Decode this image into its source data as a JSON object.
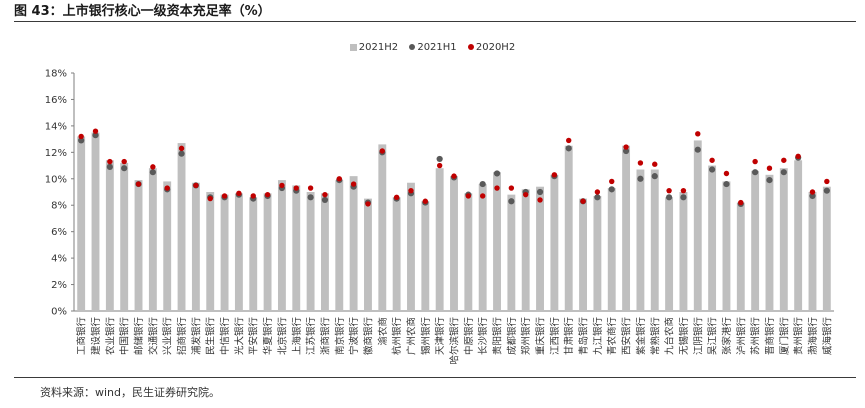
{
  "figure_title": "图 43：上市银行核心一级资本充足率（%）",
  "source_note": "资料来源：wind，民生证券研究院。",
  "colors": {
    "h2_2021": "#bfbfbf",
    "h1_2021": "#595959",
    "h2_2020": "#c00000"
  },
  "chart_data": {
    "type": "bar",
    "title": "",
    "xlabel": "",
    "ylabel": "",
    "ylim": [
      0,
      18
    ],
    "yticks": [
      "0%",
      "2%",
      "4%",
      "6%",
      "8%",
      "10%",
      "12%",
      "14%",
      "16%",
      "18%"
    ],
    "yticks_values": [
      0,
      2,
      4,
      6,
      8,
      10,
      12,
      14,
      16,
      18
    ],
    "grid": false,
    "legend_position": "top-center",
    "categories": [
      "工商银行",
      "建设银行",
      "农业银行",
      "中国银行",
      "邮储银行",
      "交通银行",
      "兴业银行",
      "招商银行",
      "浦发银行",
      "民生银行",
      "中信银行",
      "光大银行",
      "平安银行",
      "华夏银行",
      "北京银行",
      "上海银行",
      "江苏银行",
      "浙商银行",
      "南京银行",
      "宁波银行",
      "徽商银行",
      "渝农商",
      "杭州银行",
      "广州农商",
      "锡州银行",
      "天津银行",
      "哈尔滨银行",
      "中原银行",
      "长沙银行",
      "贵阳银行",
      "成都银行",
      "郑州银行",
      "重庆银行",
      "江西银行",
      "甘肃银行",
      "青岛银行",
      "九江银行",
      "青农商行",
      "西安银行",
      "紫金银行",
      "常熟银行",
      "九台农商",
      "无锡银行",
      "江阴银行",
      "吴江银行",
      "张家港行",
      "泸州银行",
      "苏州银行",
      "晋商银行",
      "厦门银行",
      "贵州银行",
      "渤海银行",
      "威海银行"
    ],
    "series": [
      {
        "name": "2021H2",
        "kind": "bar",
        "values": [
          13.2,
          13.5,
          11.4,
          11.2,
          9.9,
          10.8,
          9.8,
          12.7,
          9.7,
          9.0,
          8.8,
          8.9,
          8.6,
          8.9,
          9.9,
          9.5,
          9.0,
          8.9,
          9.9,
          10.2,
          8.5,
          12.6,
          8.6,
          9.7,
          8.3,
          10.8,
          10.2,
          8.9,
          9.6,
          10.5,
          8.8,
          9.2,
          9.4,
          10.3,
          12.5,
          8.5,
          8.7,
          9.3,
          12.5,
          10.7,
          10.7,
          8.6,
          9.0,
          12.9,
          11.0,
          9.8,
          8.2,
          10.6,
          10.3,
          10.8,
          11.4,
          9.0,
          9.4
        ]
      },
      {
        "name": "2021H1",
        "kind": "dot",
        "values": [
          12.9,
          13.3,
          10.9,
          10.8,
          9.6,
          10.5,
          9.2,
          11.9,
          9.5,
          8.6,
          8.6,
          8.8,
          8.5,
          8.7,
          9.3,
          9.1,
          8.6,
          8.4,
          9.9,
          9.4,
          8.2,
          12.0,
          8.5,
          8.9,
          8.2,
          11.5,
          10.1,
          8.8,
          9.6,
          10.4,
          8.3,
          9.0,
          9.0,
          10.2,
          12.3,
          8.3,
          8.6,
          9.2,
          12.1,
          10.0,
          10.2,
          8.6,
          8.6,
          12.2,
          10.7,
          9.6,
          8.1,
          10.5,
          9.9,
          10.5,
          11.6,
          8.7,
          9.1
        ]
      },
      {
        "name": "2020H2",
        "kind": "dot",
        "values": [
          13.2,
          13.6,
          11.3,
          11.3,
          9.6,
          10.9,
          9.3,
          12.3,
          9.5,
          8.5,
          8.7,
          8.9,
          8.7,
          8.8,
          9.5,
          9.3,
          9.3,
          8.8,
          10.0,
          9.6,
          8.1,
          12.1,
          8.6,
          9.1,
          8.3,
          11.0,
          10.2,
          8.7,
          8.7,
          9.3,
          9.3,
          8.8,
          8.4,
          10.3,
          12.9,
          8.3,
          9.0,
          9.8,
          12.4,
          11.2,
          11.1,
          9.1,
          9.1,
          13.4,
          11.4,
          10.4,
          8.2,
          11.3,
          10.8,
          11.4,
          11.7,
          9.0,
          9.8
        ]
      }
    ]
  }
}
